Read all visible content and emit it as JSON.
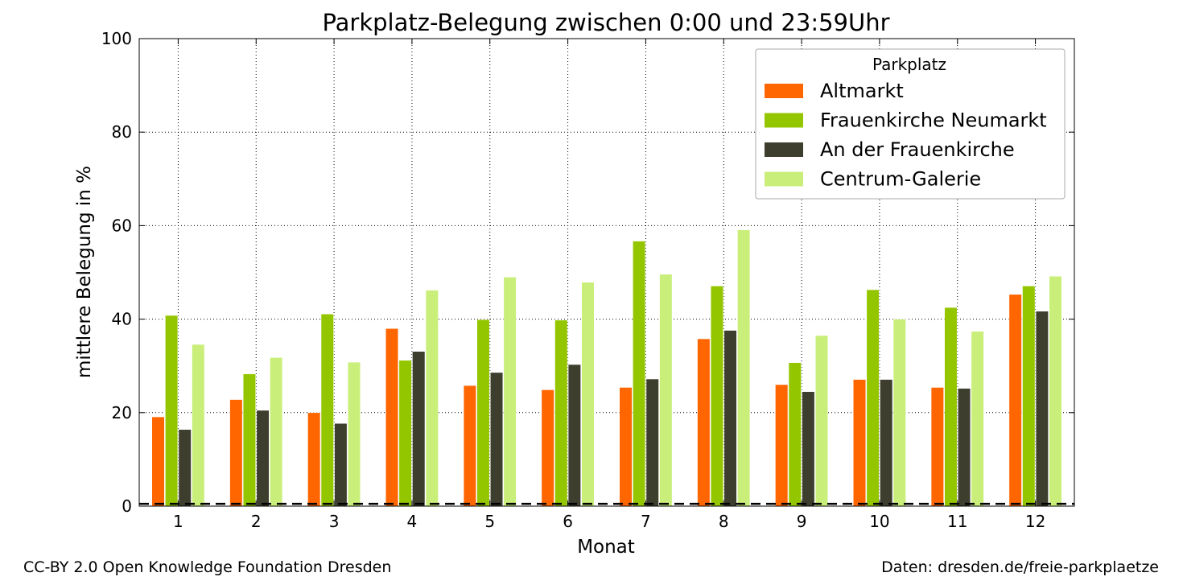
{
  "chart_data": {
    "type": "bar",
    "title": "Parkplatz-Belegung zwischen 0:00 und 23:59Uhr",
    "xlabel": "Monat",
    "ylabel": "mittlere Belegung in %",
    "ylim": [
      0,
      100
    ],
    "yticks": [
      "0",
      "20",
      "40",
      "60",
      "80",
      "100"
    ],
    "categories": [
      "1",
      "2",
      "3",
      "4",
      "5",
      "6",
      "7",
      "8",
      "9",
      "10",
      "11",
      "12"
    ],
    "grid": true,
    "legend": {
      "title": "Parkplatz",
      "placement": "top-right"
    },
    "series": [
      {
        "name": "Altmarkt",
        "color": "#ff6600",
        "values": [
          19.1,
          22.8,
          20.0,
          38.0,
          25.8,
          24.9,
          25.4,
          35.8,
          26.0,
          27.1,
          25.4,
          45.3
        ]
      },
      {
        "name": "Frauenkirche Neumarkt",
        "color": "#94c600",
        "values": [
          40.8,
          28.3,
          41.1,
          31.2,
          39.9,
          39.8,
          56.7,
          47.1,
          30.7,
          46.3,
          42.5,
          47.1
        ]
      },
      {
        "name": "An der Frauenkirche",
        "color": "#3e3e2e",
        "values": [
          16.4,
          20.5,
          17.7,
          33.1,
          28.6,
          30.3,
          27.2,
          37.6,
          24.5,
          27.1,
          25.2,
          41.7
        ]
      },
      {
        "name": "Centrum-Galerie",
        "color": "#c9ef7a",
        "values": [
          34.6,
          31.8,
          30.8,
          46.2,
          49.0,
          47.9,
          49.6,
          59.1,
          36.5,
          40.0,
          37.4,
          49.2
        ]
      }
    ],
    "reference_line": {
      "y": 0.5,
      "style": "dashed"
    }
  },
  "footer": {
    "left": "CC-BY 2.0 Open Knowledge Foundation Dresden",
    "right": "Daten: dresden.de/freie-parkplaetze"
  }
}
